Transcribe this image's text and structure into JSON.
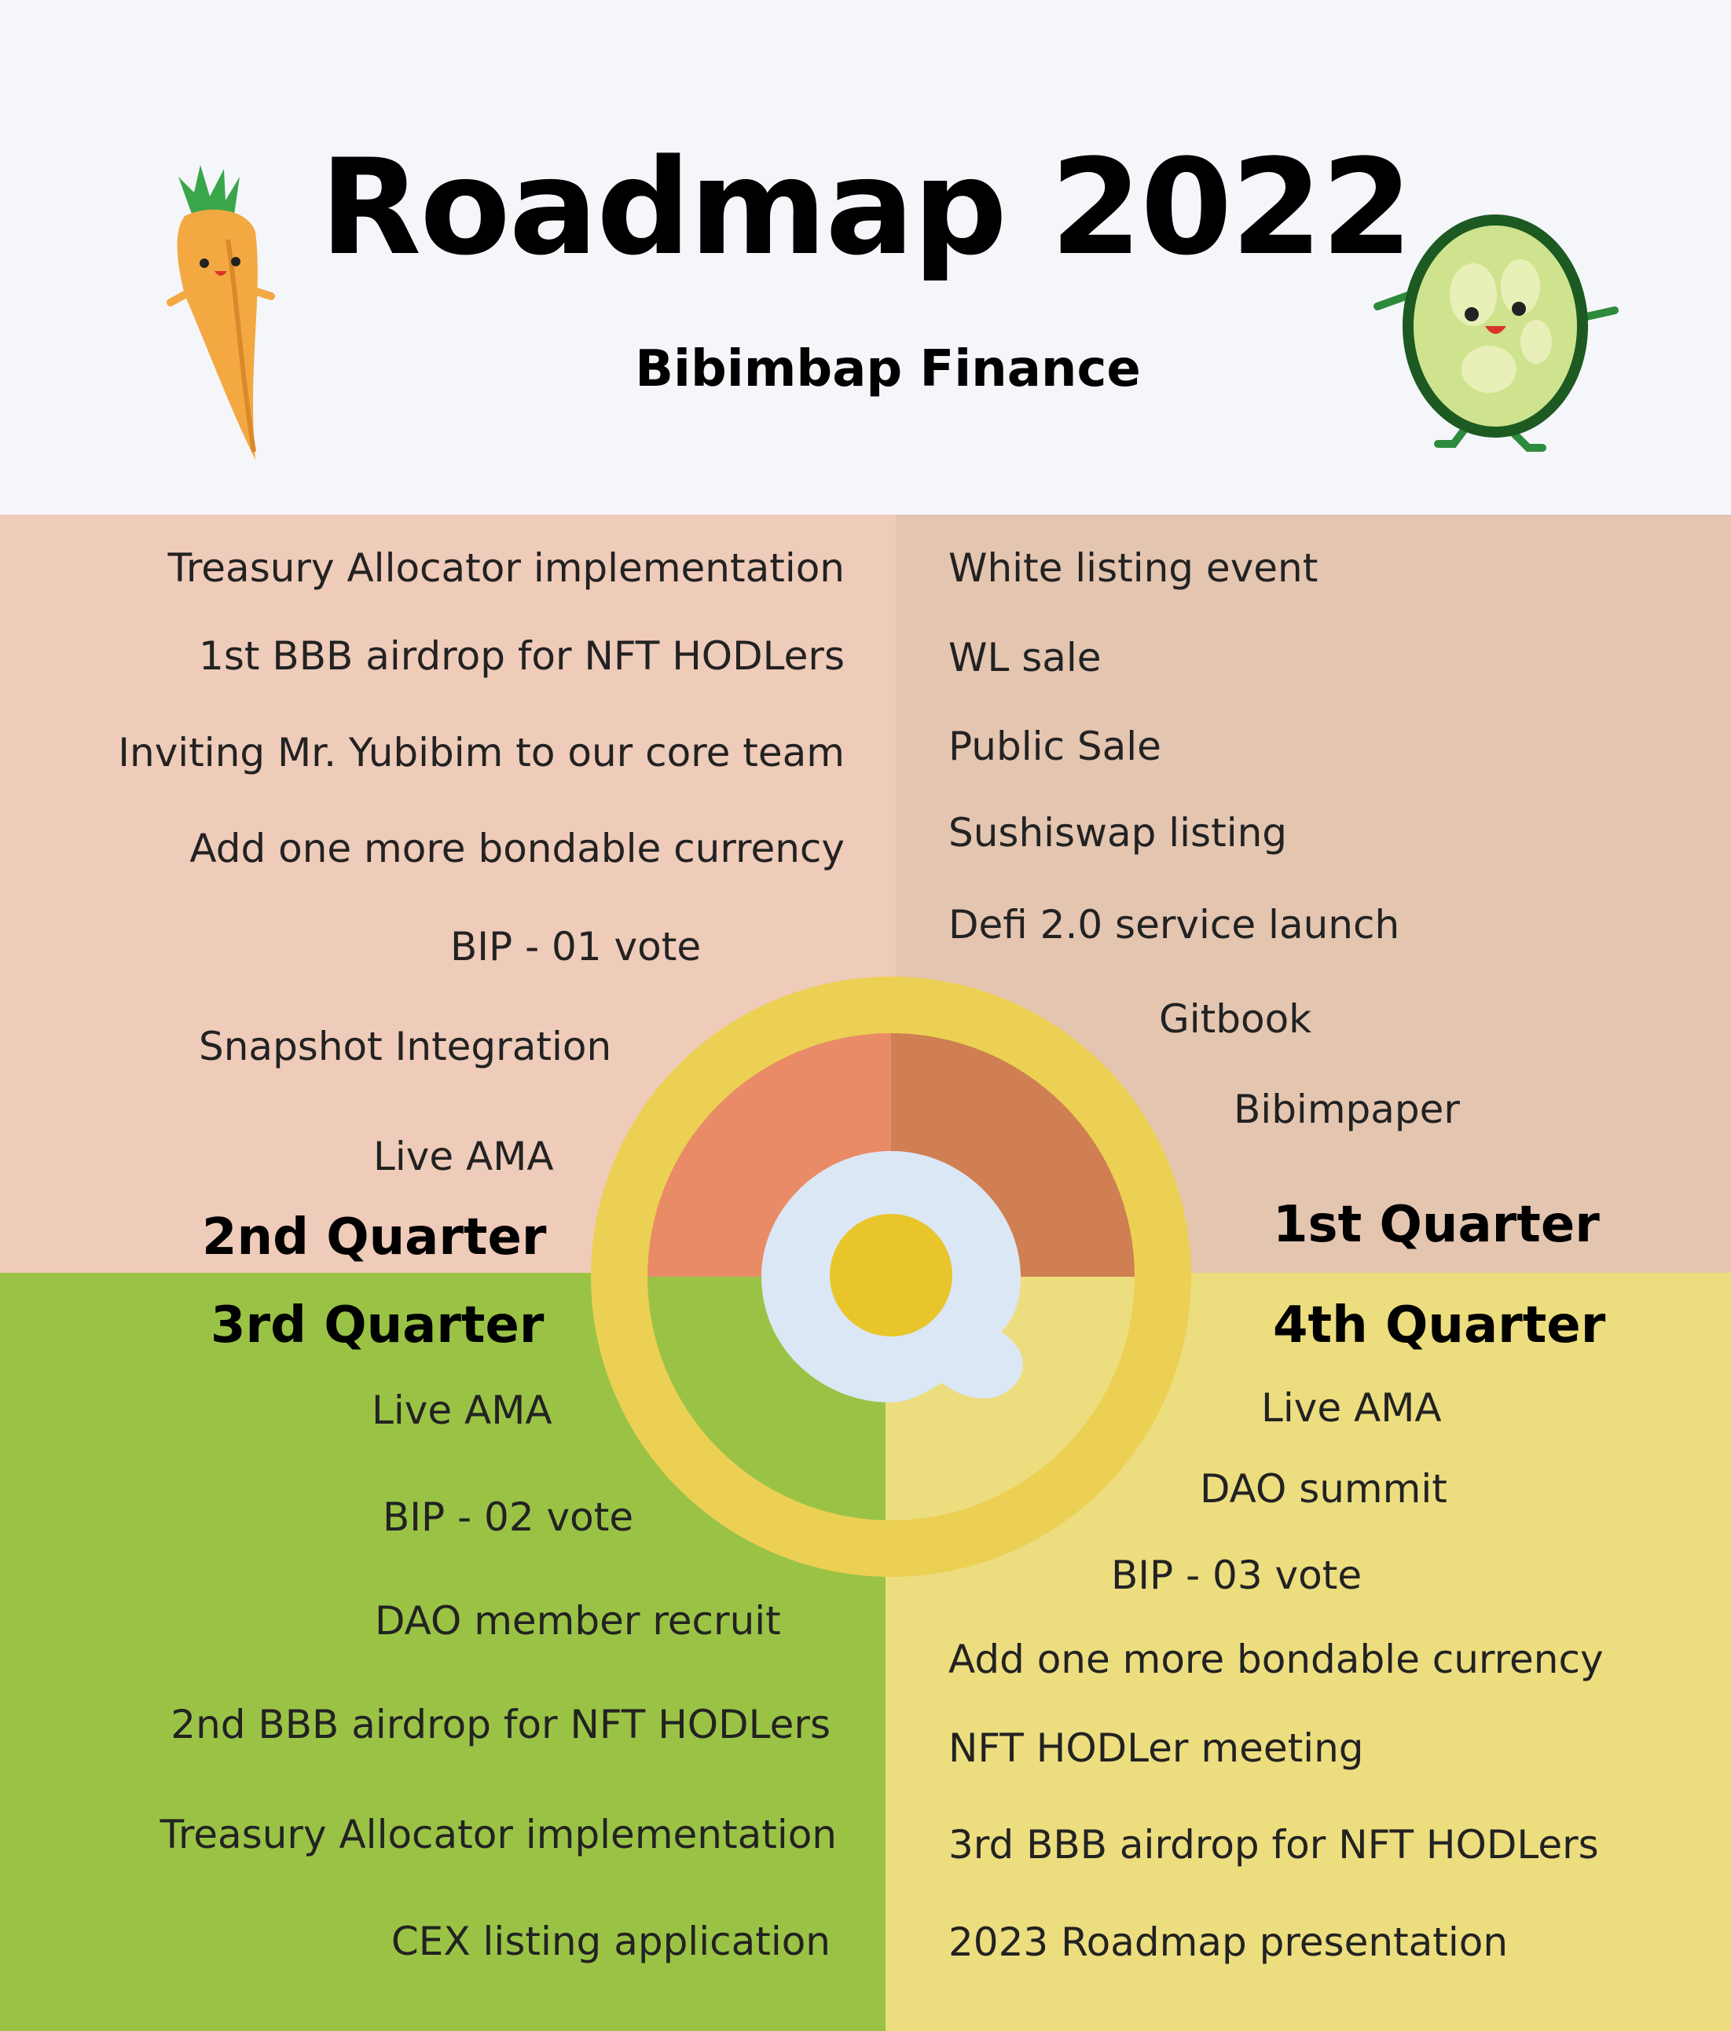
{
  "header": {
    "title": "Roadmap 2022",
    "subtitle": "Bibimbap Finance"
  },
  "quarters": {
    "q1": {
      "label": "1st Quarter",
      "items": [
        "White listing event",
        "WL sale",
        "Public Sale",
        "Sushiswap listing",
        "Defi 2.0 service launch",
        "Gitbook",
        "Bibimpaper"
      ]
    },
    "q2": {
      "label": "2nd Quarter",
      "items": [
        "Treasury Allocator implementation",
        "1st BBB airdrop for NFT HODLers",
        "Inviting Mr. Yubibim to our core team",
        "Add one more bondable currency",
        "BIP - 01 vote",
        "Snapshot Integration",
        "Live AMA"
      ]
    },
    "q3": {
      "label": "3rd Quarter",
      "items": [
        "Live AMA",
        "BIP - 02 vote",
        "DAO member recruit",
        "2nd BBB airdrop for NFT HODLers",
        "Treasury Allocator implementation",
        "CEX listing application"
      ]
    },
    "q4": {
      "label": "4th Quarter",
      "items": [
        "Live AMA",
        "DAO summit",
        "BIP - 03 vote",
        "Add one more bondable currency",
        "NFT HODLer meeting",
        "3rd BBB airdrop for NFT HODLers",
        "2023 Roadmap presentation"
      ]
    }
  },
  "colors": {
    "background": "#f4f6fa",
    "q1": "#e4c5b0",
    "q2": "#efcbb9",
    "q3": "#9ac346",
    "q4": "#ecdd7f",
    "ring": "#ecd053",
    "wedge_q1": "#cf7f52",
    "wedge_q2": "#e98b67",
    "egg_white": "#dbe7f5",
    "egg_yolk": "#e8c52a"
  },
  "icons": [
    "carrot-mascot-icon",
    "cucumber-mascot-icon",
    "fried-egg-icon"
  ]
}
